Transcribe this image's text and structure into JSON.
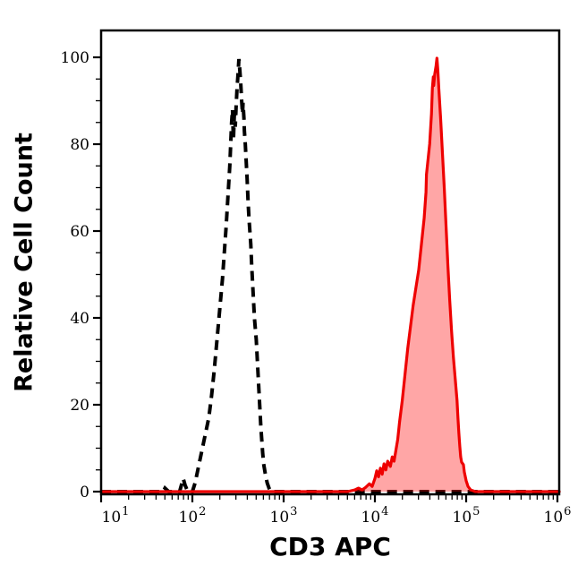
{
  "figure": {
    "kind": "flow-cytometry-histogram",
    "background_color": "#ffffff"
  },
  "chart_data": {
    "type": "area",
    "title": "",
    "xlabel": "CD3 APC",
    "ylabel": "Relative Cell Count",
    "x_scale": "log10",
    "xlim_log10": [
      1.0,
      6.02
    ],
    "ylim": [
      0,
      106
    ],
    "grid": false,
    "legend": "none",
    "x_major_ticks_log10": [
      1,
      2,
      3,
      4,
      5,
      6
    ],
    "x_tick_base": "10",
    "x_tick_exponents": [
      "1",
      "2",
      "3",
      "4",
      "5",
      "6"
    ],
    "x_minor_ticks_per_decade": [
      2,
      3,
      4,
      5,
      6,
      7,
      8,
      9
    ],
    "y_ticks": [
      0,
      20,
      40,
      60,
      80,
      100
    ],
    "y_tick_labels": [
      "0",
      "20",
      "40",
      "60",
      "80",
      "100"
    ],
    "y_minor_step": 5,
    "axis_color": "#000000",
    "series": [
      {
        "name": "black-dashed-histogram",
        "line_style": "dashed",
        "color": "#000000",
        "fill": "none",
        "peak_x_log10": 2.51,
        "peak_count": 99.6,
        "points_log10x_count": [
          [
            1.0,
            0
          ],
          [
            1.68,
            0
          ],
          [
            1.7,
            0.8
          ],
          [
            1.72,
            0.4
          ],
          [
            1.74,
            0
          ],
          [
            1.86,
            0
          ],
          [
            1.88,
            1.5
          ],
          [
            1.9,
            3
          ],
          [
            1.92,
            1.5
          ],
          [
            1.95,
            0
          ],
          [
            2.0,
            0
          ],
          [
            2.03,
            2
          ],
          [
            2.06,
            5
          ],
          [
            2.09,
            8
          ],
          [
            2.12,
            11
          ],
          [
            2.15,
            14
          ],
          [
            2.18,
            17
          ],
          [
            2.21,
            22
          ],
          [
            2.24,
            28
          ],
          [
            2.27,
            35
          ],
          [
            2.3,
            42
          ],
          [
            2.33,
            49
          ],
          [
            2.35,
            55
          ],
          [
            2.37,
            61
          ],
          [
            2.39,
            68
          ],
          [
            2.41,
            75
          ],
          [
            2.42,
            80
          ],
          [
            2.43,
            85
          ],
          [
            2.44,
            88
          ],
          [
            2.445,
            84
          ],
          [
            2.45,
            81
          ],
          [
            2.46,
            87
          ],
          [
            2.47,
            84
          ],
          [
            2.48,
            89
          ],
          [
            2.49,
            93
          ],
          [
            2.5,
            96
          ],
          [
            2.51,
            99.6
          ],
          [
            2.52,
            97
          ],
          [
            2.53,
            94
          ],
          [
            2.54,
            90
          ],
          [
            2.55,
            87
          ],
          [
            2.555,
            89.5
          ],
          [
            2.565,
            86
          ],
          [
            2.57,
            83
          ],
          [
            2.58,
            80
          ],
          [
            2.59,
            76
          ],
          [
            2.6,
            72
          ],
          [
            2.61,
            67
          ],
          [
            2.62,
            63
          ],
          [
            2.64,
            57
          ],
          [
            2.65,
            52
          ],
          [
            2.66,
            48
          ],
          [
            2.67,
            44
          ],
          [
            2.68,
            40
          ],
          [
            2.7,
            35
          ],
          [
            2.71,
            31
          ],
          [
            2.72,
            27
          ],
          [
            2.73,
            23
          ],
          [
            2.74,
            19
          ],
          [
            2.75,
            15
          ],
          [
            2.76,
            12
          ],
          [
            2.77,
            9
          ],
          [
            2.78,
            6.5
          ],
          [
            2.8,
            4
          ],
          [
            2.82,
            2
          ],
          [
            2.84,
            0.8
          ],
          [
            2.86,
            0
          ],
          [
            6.02,
            0
          ]
        ]
      },
      {
        "name": "red-filled-histogram",
        "line_style": "solid",
        "color": "#ee0000",
        "fill": "#ff0000",
        "fill_opacity": 0.35,
        "peak_x_log10": 4.68,
        "peak_count": 99.8,
        "points_log10x_count": [
          [
            1.0,
            0
          ],
          [
            3.7,
            0
          ],
          [
            3.78,
            0.4
          ],
          [
            3.82,
            0.8
          ],
          [
            3.86,
            0.4
          ],
          [
            3.9,
            1
          ],
          [
            3.94,
            1.8
          ],
          [
            3.97,
            1.2
          ],
          [
            4.0,
            3
          ],
          [
            4.02,
            4.8
          ],
          [
            4.04,
            3.4
          ],
          [
            4.06,
            5.4
          ],
          [
            4.08,
            4
          ],
          [
            4.1,
            6.4
          ],
          [
            4.12,
            5
          ],
          [
            4.14,
            7
          ],
          [
            4.17,
            5.8
          ],
          [
            4.19,
            8
          ],
          [
            4.21,
            7
          ],
          [
            4.23,
            9.5
          ],
          [
            4.25,
            12
          ],
          [
            4.27,
            16
          ],
          [
            4.3,
            21
          ],
          [
            4.33,
            27
          ],
          [
            4.36,
            33
          ],
          [
            4.39,
            38
          ],
          [
            4.42,
            43
          ],
          [
            4.45,
            47
          ],
          [
            4.48,
            51
          ],
          [
            4.51,
            57
          ],
          [
            4.54,
            63
          ],
          [
            4.56,
            69
          ],
          [
            4.565,
            73
          ],
          [
            4.58,
            76
          ],
          [
            4.6,
            80
          ],
          [
            4.62,
            87
          ],
          [
            4.63,
            93
          ],
          [
            4.64,
            95.5
          ],
          [
            4.645,
            93.5
          ],
          [
            4.655,
            96
          ],
          [
            4.67,
            98
          ],
          [
            4.68,
            99.8
          ],
          [
            4.69,
            97
          ],
          [
            4.7,
            93
          ],
          [
            4.72,
            86
          ],
          [
            4.74,
            78
          ],
          [
            4.76,
            70
          ],
          [
            4.78,
            61
          ],
          [
            4.8,
            52
          ],
          [
            4.82,
            44
          ],
          [
            4.84,
            37
          ],
          [
            4.86,
            31
          ],
          [
            4.88,
            26
          ],
          [
            4.9,
            21
          ],
          [
            4.91,
            17
          ],
          [
            4.92,
            13.5
          ],
          [
            4.93,
            10.5
          ],
          [
            4.94,
            8
          ],
          [
            4.95,
            6.8
          ],
          [
            4.97,
            6.2
          ],
          [
            4.98,
            4.5
          ],
          [
            5.0,
            2.5
          ],
          [
            5.02,
            1.2
          ],
          [
            5.05,
            0.4
          ],
          [
            5.1,
            0
          ],
          [
            6.02,
            0
          ]
        ]
      }
    ]
  }
}
